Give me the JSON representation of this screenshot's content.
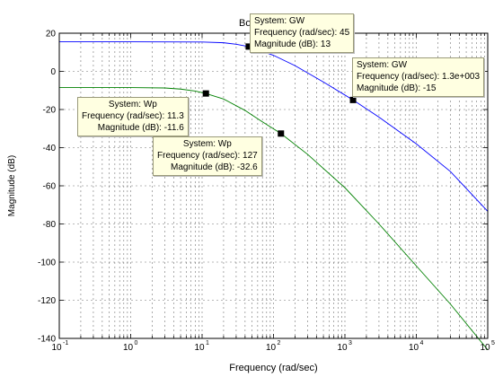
{
  "chart_data": {
    "type": "line",
    "title": "Bo",
    "xlabel": "Frequency  (rad/sec)",
    "ylabel": "Magnitude (dB)",
    "xscale": "log",
    "xlim": [
      0.1,
      100000
    ],
    "ylim": [
      -140,
      20
    ],
    "grid": true,
    "x_ticks": [
      {
        "base": "10",
        "exp": "-1"
      },
      {
        "base": "10",
        "exp": "0"
      },
      {
        "base": "10",
        "exp": "1"
      },
      {
        "base": "10",
        "exp": "2"
      },
      {
        "base": "10",
        "exp": "3"
      },
      {
        "base": "10",
        "exp": "4"
      },
      {
        "base": "10",
        "exp": "5"
      }
    ],
    "y_ticks": [
      "20",
      "0",
      "-20",
      "-40",
      "-60",
      "-80",
      "-100",
      "-120",
      "-140"
    ],
    "series": [
      {
        "color": "#0000ff",
        "x": [
          0.1,
          1,
          10,
          20,
          30,
          45,
          100,
          200,
          500,
          1300,
          3000,
          10000,
          30000,
          100000
        ],
        "y": [
          15.5,
          15.5,
          15.4,
          15.0,
          14.2,
          13,
          8.4,
          3.0,
          -5.6,
          -15,
          -24,
          -38,
          -52.5,
          -73.4
        ]
      },
      {
        "color": "#008000",
        "x": [
          0.1,
          1,
          3,
          5,
          8,
          11.3,
          20,
          40,
          70,
          127,
          300,
          1000,
          3000,
          10000,
          30000,
          100000
        ],
        "y": [
          -8.5,
          -8.5,
          -8.7,
          -9.3,
          -10.3,
          -11.6,
          -14.5,
          -20.5,
          -26.5,
          -32.6,
          -43.5,
          -61,
          -80,
          -102,
          -122,
          -146
        ]
      }
    ],
    "datatips": [
      {
        "system": "System: GW",
        "freq_label": "Frequency (rad/sec): 45",
        "mag_label": "Magnitude (dB): 13",
        "x": 45,
        "y": 13
      },
      {
        "system": "System: GW",
        "freq_label": "Frequency (rad/sec): 1.3e+003",
        "mag_label": "Magnitude (dB): -15",
        "x": 1300,
        "y": -15
      },
      {
        "system": "System: Wp",
        "freq_label": "Frequency (rad/sec): 11.3",
        "mag_label": "Magnitude (dB): -11.6",
        "x": 11.3,
        "y": -11.6
      },
      {
        "system": "System: Wp",
        "freq_label": "Frequency (rad/sec): 127",
        "mag_label": "Magnitude (dB): -32.6",
        "x": 127,
        "y": -32.6
      }
    ]
  }
}
